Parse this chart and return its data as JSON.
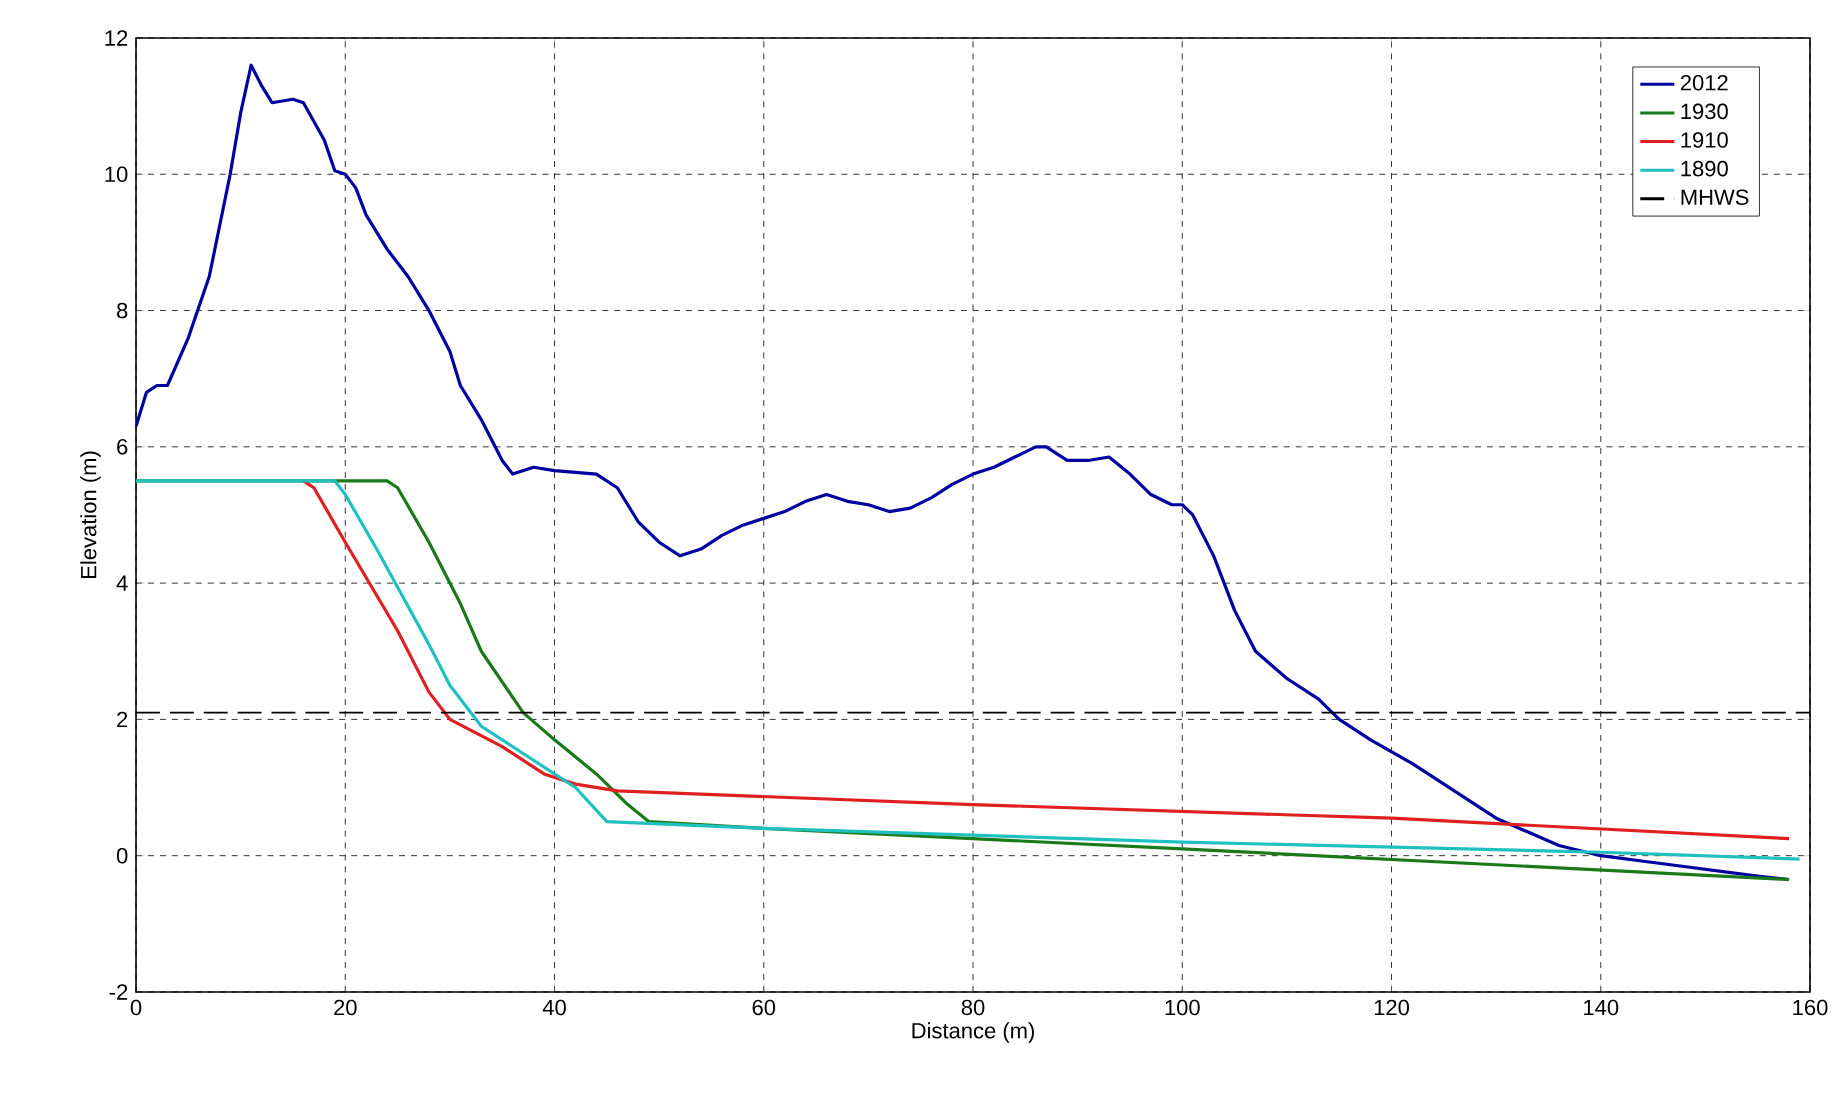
{
  "chart_data": {
    "type": "line",
    "xlabel": "Distance (m)",
    "ylabel": "Elevation (m)",
    "xlim": [
      0,
      160
    ],
    "ylim": [
      -2,
      12
    ],
    "xticks": [
      0,
      20,
      40,
      60,
      80,
      100,
      120,
      140,
      160
    ],
    "yticks": [
      -2,
      0,
      2,
      4,
      6,
      8,
      10,
      12
    ],
    "grid": true,
    "legend": "top right",
    "line_style": "solid",
    "marker": "none",
    "series": [
      {
        "name": "2012",
        "color": "#0000a0",
        "x": [
          0,
          1,
          2,
          3,
          5,
          7,
          9,
          10,
          11,
          12,
          13,
          15,
          16,
          18,
          19,
          20,
          21,
          22,
          24,
          26,
          28,
          30,
          31,
          33,
          35,
          36,
          38,
          40,
          44,
          46,
          48,
          50,
          52,
          54,
          56,
          58,
          60,
          62,
          64,
          66,
          68,
          70,
          72,
          74,
          76,
          78,
          80,
          82,
          84,
          86,
          87,
          89,
          91,
          93,
          95,
          97,
          99,
          100,
          101,
          103,
          105,
          107,
          110,
          113,
          115,
          118,
          122,
          126,
          130,
          133,
          136,
          140,
          145,
          150,
          155,
          158
        ],
        "values": [
          6.3,
          6.8,
          6.9,
          6.9,
          7.6,
          8.5,
          10,
          10.9,
          11.6,
          11.3,
          11.05,
          11.1,
          11.05,
          10.5,
          10.05,
          10,
          9.8,
          9.4,
          8.9,
          8.5,
          8,
          7.4,
          6.9,
          6.4,
          5.8,
          5.6,
          5.7,
          5.65,
          5.6,
          5.4,
          4.9,
          4.6,
          4.4,
          4.5,
          4.7,
          4.85,
          4.95,
          5.05,
          5.2,
          5.3,
          5.2,
          5.15,
          5.05,
          5.1,
          5.25,
          5.45,
          5.6,
          5.7,
          5.85,
          6,
          6,
          5.8,
          5.8,
          5.85,
          5.6,
          5.3,
          5.15,
          5.15,
          5,
          4.4,
          3.6,
          3,
          2.6,
          2.3,
          2,
          1.7,
          1.35,
          0.95,
          0.55,
          0.35,
          0.15,
          0,
          -0.1,
          -0.2,
          -0.3,
          -0.35
        ]
      },
      {
        "name": "1930",
        "color": "#1a7a1a",
        "x": [
          0,
          24,
          25,
          28,
          31,
          33,
          37,
          40,
          44,
          47,
          49,
          60,
          100,
          158
        ],
        "values": [
          5.5,
          5.5,
          5.4,
          4.6,
          3.7,
          3,
          2.1,
          1.7,
          1.2,
          0.75,
          0.5,
          0.4,
          0.1,
          -0.35
        ]
      },
      {
        "name": "1910",
        "color": "#e02020",
        "x": [
          16,
          17,
          20,
          25,
          28,
          30,
          35,
          39,
          42,
          46,
          80,
          120,
          158
        ],
        "values": [
          5.5,
          5.4,
          4.6,
          3.3,
          2.4,
          2,
          1.6,
          1.2,
          1.05,
          0.95,
          0.75,
          0.55,
          0.25
        ]
      },
      {
        "name": "1890",
        "color": "#20c0c0",
        "x": [
          0,
          19,
          20,
          23,
          28,
          30,
          33,
          38,
          42,
          45,
          60,
          100,
          140,
          159
        ],
        "values": [
          5.5,
          5.5,
          5.3,
          4.5,
          3.1,
          2.5,
          1.9,
          1.4,
          1,
          0.5,
          0.4,
          0.2,
          0.05,
          -0.05
        ]
      }
    ],
    "ref_lines": [
      {
        "axis": "y",
        "value": 2.1,
        "label": "MHWS",
        "color": "#000000",
        "line_style": "dashed"
      }
    ]
  }
}
